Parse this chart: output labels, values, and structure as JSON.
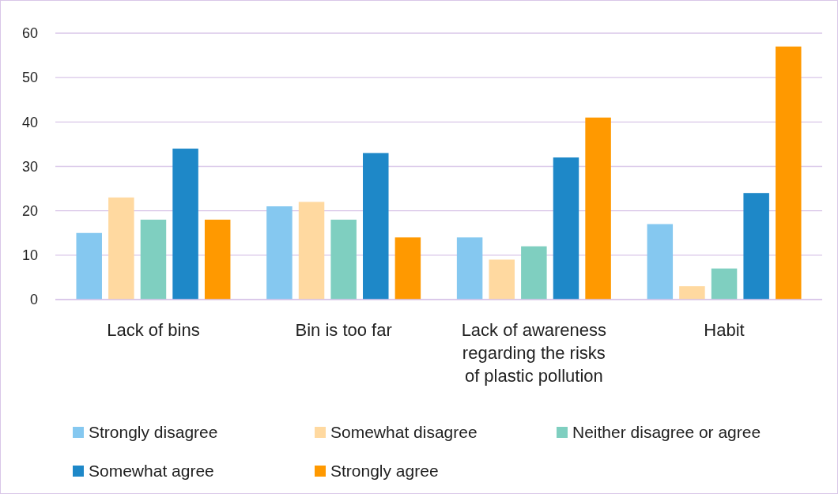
{
  "chart_data": {
    "type": "bar",
    "categories": [
      "Lack of bins",
      "Bin is too far",
      "Lack of awareness regarding the risks of plastic pollution",
      "Habit"
    ],
    "series": [
      {
        "name": "Strongly disagree",
        "color": "#85c8f0",
        "values": [
          15,
          21,
          14,
          17
        ]
      },
      {
        "name": "Somewhat disagree",
        "color": "#ffd9a0",
        "values": [
          23,
          22,
          9,
          3
        ]
      },
      {
        "name": "Neither disagree or agree",
        "color": "#7fcfc0",
        "values": [
          18,
          18,
          12,
          7
        ]
      },
      {
        "name": "Somewhat agree",
        "color": "#1e88c8",
        "values": [
          34,
          33,
          32,
          24
        ]
      },
      {
        "name": "Strongly agree",
        "color": "#ff9900",
        "values": [
          18,
          14,
          41,
          57
        ]
      }
    ],
    "ylim": [
      0,
      60
    ],
    "yticks": [
      0,
      10,
      20,
      30,
      40,
      50,
      60
    ],
    "grid": "y",
    "legend": "bottom"
  }
}
